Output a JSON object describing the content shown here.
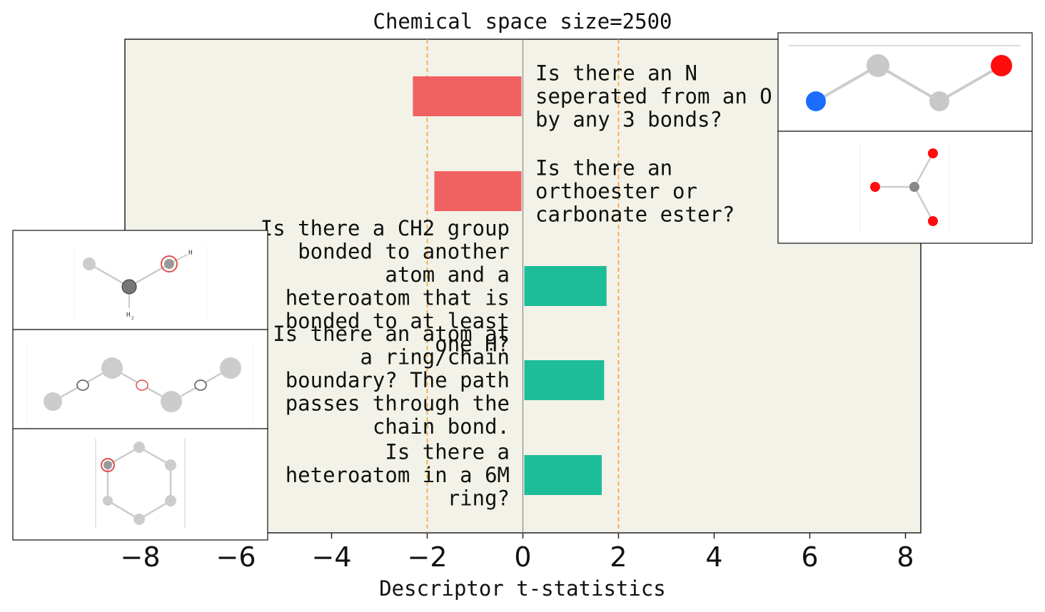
{
  "chart_data": {
    "type": "bar",
    "orientation": "horizontal",
    "title": "Chemical space size=2500",
    "xlabel": "Descriptor t-statistics",
    "ylabel": "",
    "xlim": [
      -8.5,
      8.3
    ],
    "xticks": [
      -8,
      -6,
      -4,
      -2,
      0,
      2,
      4,
      6,
      8
    ],
    "xtick_labels": [
      "−8",
      "−6",
      "−4",
      "−2",
      "0",
      "2",
      "4",
      "6",
      "8"
    ],
    "threshold_lines": [
      -2,
      2
    ],
    "grid": false,
    "colors": {
      "background": "#f3f2e8",
      "negative": "#f06262",
      "positive": "#1dbd9a",
      "threshold": "#f2a43a",
      "zero_line": "#888888"
    },
    "bars": [
      {
        "value": -2.3,
        "label": [
          "Is there an N",
          "seperated from an O",
          "by any 3 bonds?"
        ]
      },
      {
        "value": -1.85,
        "label": [
          "Is there an",
          "orthoester or",
          "carbonate ester?"
        ]
      },
      {
        "value": 1.75,
        "label": [
          "Is there a CH2 group",
          "bonded to another",
          "atom and a",
          "heteroatom that is",
          "bonded to at least",
          "one H?"
        ]
      },
      {
        "value": 1.7,
        "label": [
          "Is there an atom at",
          "a ring/chain",
          "boundary? The path",
          "passes through the",
          "chain bond."
        ]
      },
      {
        "value": 1.65,
        "label": [
          "Is there a",
          "heteroatom in a 6M",
          "ring?"
        ]
      }
    ],
    "atom_labels": [
      "H",
      "H",
      "2"
    ]
  }
}
